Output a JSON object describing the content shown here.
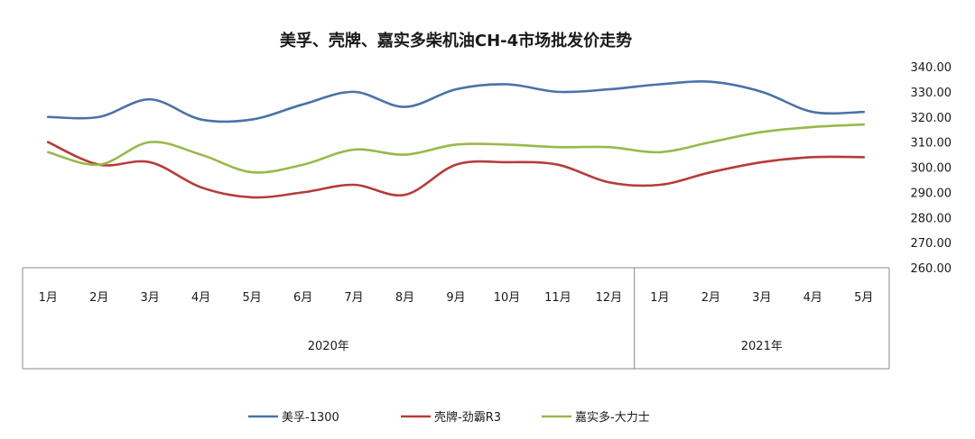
{
  "chart_data": {
    "type": "line",
    "title": "美孚、壳牌、嘉实多柴机油CH-4市场批发价走势",
    "x": [
      "1月",
      "2月",
      "3月",
      "4月",
      "5月",
      "6月",
      "7月",
      "8月",
      "9月",
      "10月",
      "11月",
      "12月",
      "1月",
      "2月",
      "3月",
      "4月",
      "5月"
    ],
    "year_groups": [
      {
        "label": "2020年",
        "count": 12
      },
      {
        "label": "2021年",
        "count": 5
      }
    ],
    "y_ticks": [
      "340.00",
      "330.00",
      "320.00",
      "310.00",
      "300.00",
      "290.00",
      "280.00",
      "270.00",
      "260.00"
    ],
    "ylim": [
      260,
      340
    ],
    "grid": false,
    "legend_position": "bottom",
    "series": [
      {
        "name": "美孚-1300",
        "color": "#4a72a9",
        "values": [
          320,
          320,
          327,
          319,
          319,
          325,
          330,
          324,
          331,
          333,
          330,
          331,
          333,
          334,
          330,
          322,
          322
        ]
      },
      {
        "name": "壳牌-劲霸R3",
        "color": "#b63c3a",
        "values": [
          310,
          301,
          302,
          292,
          288,
          290,
          293,
          289,
          301,
          302,
          301,
          294,
          293,
          298,
          302,
          304,
          304
        ]
      },
      {
        "name": "嘉实多-大力士",
        "color": "#98b94a",
        "values": [
          306,
          301,
          310,
          305,
          298,
          301,
          307,
          305,
          309,
          309,
          308,
          308,
          306,
          310,
          314,
          316,
          317
        ]
      }
    ]
  }
}
